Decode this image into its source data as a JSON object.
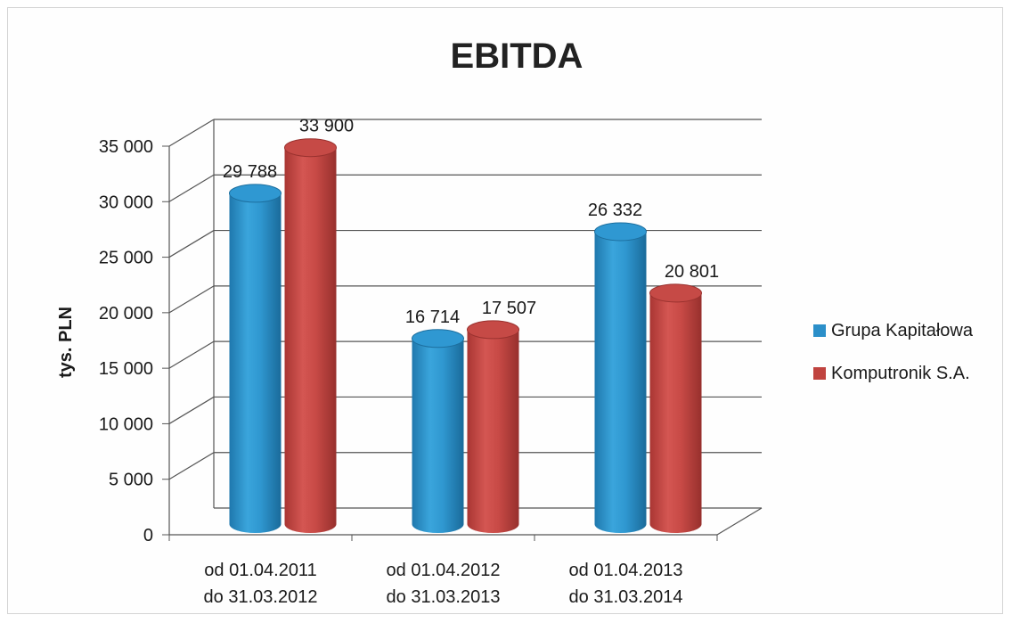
{
  "chart_data": {
    "type": "bar",
    "title": "EBITDA",
    "ylabel": "tys. PLN",
    "xlabel": "",
    "ylim": [
      0,
      35000
    ],
    "yticks": [
      "35 000",
      "30 000",
      "25 000",
      "20 000",
      "15 000",
      "10 000",
      "5 000",
      "0"
    ],
    "ytick_values": [
      35000,
      30000,
      25000,
      20000,
      15000,
      10000,
      5000,
      0
    ],
    "categories": [
      [
        "od 01.04.2011",
        "do 31.03.2012"
      ],
      [
        "od 01.04.2012",
        "do 31.03.2013"
      ],
      [
        "od 01.04.2013",
        "do 31.03.2014"
      ]
    ],
    "series": [
      {
        "name": "Grupa Kapitałowa",
        "color": "#2b8fc9",
        "values": [
          29788,
          16714,
          26332
        ],
        "labels": [
          "29 788",
          "16 714",
          "26 332"
        ]
      },
      {
        "name": "Komputronik S.A.",
        "color": "#c0433f",
        "values": [
          33900,
          17507,
          20801
        ],
        "labels": [
          "33 900",
          "17 507",
          "20 801"
        ]
      }
    ],
    "grid": true,
    "legend_position": "right",
    "style": "3d-cylinder"
  }
}
